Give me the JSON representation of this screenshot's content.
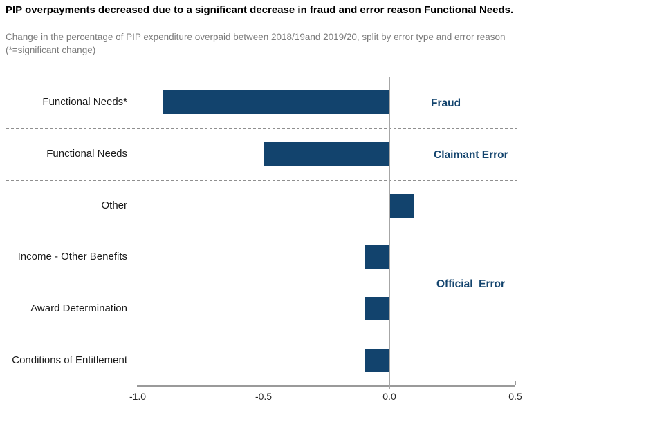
{
  "page": {
    "title": "PIP overpayments decreased due to a significant decrease in fraud and error reason Functional Needs.",
    "subtitle_line1": "Change in the percentage of PIP expenditure overpaid between 2018/19and 2019/20, split by error type and error reason",
    "subtitle_line2": "(*=significant change)"
  },
  "chart_data": {
    "type": "bar",
    "orientation": "horizontal",
    "title": "PIP overpayments decreased due to a significant decrease in fraud and error reason Functional Needs.",
    "subtitle": "Change in the percentage of PIP expenditure overpaid between 2018/19and 2019/20, split by error type and error reason (*=significant change)",
    "categories": [
      "Functional Needs*",
      "Functional Needs",
      "Other",
      "Income - Other Benefits",
      "Award Determination",
      "Conditions of Entitlement"
    ],
    "values": [
      -0.9,
      -0.5,
      0.1,
      -0.1,
      -0.1,
      -0.1
    ],
    "groups": [
      {
        "label": "Fraud",
        "rows": [
          0
        ]
      },
      {
        "label": "Claimant Error",
        "rows": [
          1
        ]
      },
      {
        "label": "Official  Error",
        "rows": [
          2,
          3,
          4,
          5
        ]
      }
    ],
    "x_ticks": [
      {
        "value": -1.0,
        "label": "-1.0"
      },
      {
        "value": -0.5,
        "label": "-0.5"
      },
      {
        "value": 0.0,
        "label": "0.0"
      },
      {
        "value": 0.5,
        "label": "0.5"
      }
    ],
    "xlim": [
      -1.0,
      0.5
    ],
    "xlabel": "",
    "ylabel": "",
    "grid": false,
    "legend": false,
    "colors": {
      "bar": "#12436D",
      "group_label": "#12436D",
      "title": "#000000",
      "subtitle": "#7b7b7b",
      "axis": "#9a9a9a",
      "zero_line": "#a6a6a6",
      "separator": "#8f8f8f",
      "tick_text": "#262626",
      "category_text": "#1a1a1a"
    }
  }
}
